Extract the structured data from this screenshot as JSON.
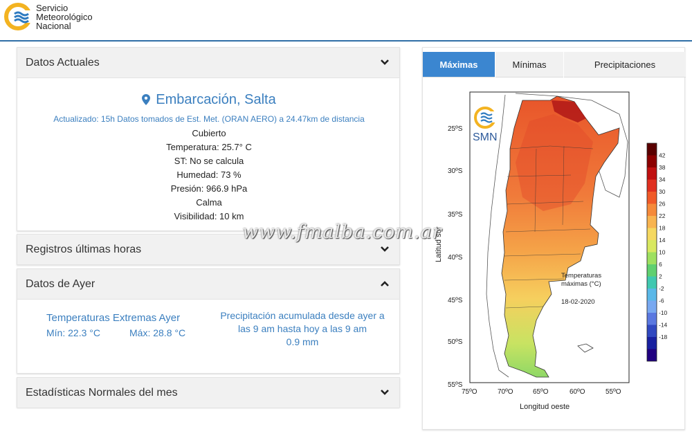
{
  "brand": {
    "line1": "Servicio",
    "line2": "Meteorológico",
    "line3": "Nacional"
  },
  "panels": {
    "actuales": {
      "title": "Datos Actuales",
      "location": "Embarcación, Salta",
      "updated": "Actualizado: 15h Datos tomados de Est. Met. (ORAN AERO) a 24.47km de distancia",
      "conditions": [
        "Cubierto",
        "Temperatura: 25.7° C",
        "ST: No se calcula",
        "Humedad: 73 %",
        "Presión: 966.9 hPa",
        "Calma",
        "Visibilidad: 10 km"
      ]
    },
    "registros": {
      "title": "Registros últimas horas"
    },
    "ayer": {
      "title": "Datos de Ayer",
      "extremes_title": "Temperaturas Extremas Ayer",
      "min": "Mín: 22.3 °C",
      "max": "Máx: 28.8 °C",
      "precip_line1": "Precipitación acumulada desde ayer a",
      "precip_line2": "las 9 am hasta hoy a las 9 am",
      "precip_value": "0.9 mm"
    },
    "normales": {
      "title": "Estadísticas Normales del mes"
    }
  },
  "tabs": [
    {
      "label": "Máximas",
      "active": true
    },
    {
      "label": "Mínimas",
      "active": false
    },
    {
      "label": "Precipitaciones",
      "active": false
    }
  ],
  "map": {
    "logo_text": "SMN",
    "ylabel": "Latitud sur",
    "xlabel": "Longitud oeste",
    "lat_ticks": [
      "25ºS",
      "30ºS",
      "35ºS",
      "40ºS",
      "45ºS",
      "50ºS",
      "55ºS"
    ],
    "lon_ticks": [
      "75ºO",
      "70ºO",
      "65ºO",
      "60ºO",
      "55ºO"
    ],
    "annotation_line1": "Temperaturas",
    "annotation_line2": "máximas (°C)",
    "date": "18-02-2020",
    "scale_labels": [
      "42",
      "38",
      "34",
      "30",
      "26",
      "22",
      "18",
      "14",
      "10",
      "6",
      "2",
      "-2",
      "-6",
      "-10",
      "-14",
      "-18"
    ],
    "scale_colors": [
      "#5a0000",
      "#8c0000",
      "#c01010",
      "#e03020",
      "#f05a28",
      "#f58a3a",
      "#f8b450",
      "#f5d860",
      "#d8e860",
      "#9ee060",
      "#60d070",
      "#40c8b0",
      "#5ab8e8",
      "#78a8f0",
      "#5a78e0",
      "#3048c0",
      "#1820a0",
      "#200080"
    ]
  },
  "watermark": "www.fmalba.com.ar",
  "colors": {
    "accent": "#3b7fbf",
    "tab_active": "#3b86d0",
    "header_line": "#2f6ea6"
  }
}
